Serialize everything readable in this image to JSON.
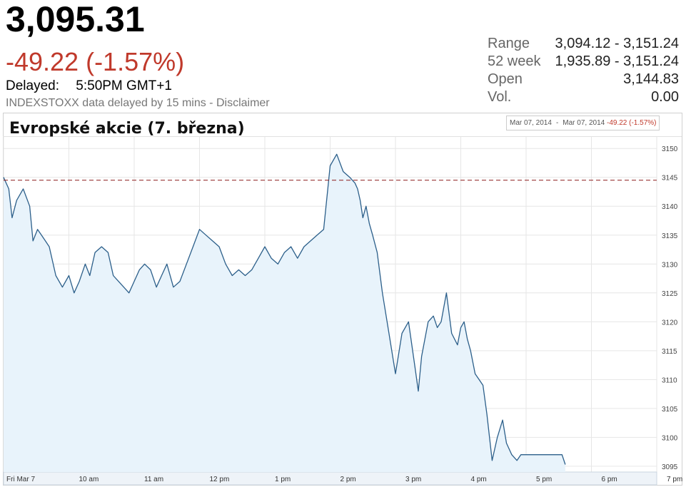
{
  "quote": {
    "price": "3,095.31",
    "change": "-49.22 (-1.57%)",
    "delayed_label": "Delayed:",
    "delayed_time": "5:50PM GMT+1",
    "disclaimer": "INDEXSTOXX data delayed by 15 mins - Disclaimer"
  },
  "stats": [
    {
      "key": "Range",
      "value": "3,094.12 - 3,151.24"
    },
    {
      "key": "52 week",
      "value": "1,935.89 - 3,151.24"
    },
    {
      "key": "Open",
      "value": "3,144.83"
    },
    {
      "key": "Vol.",
      "value": "0.00"
    }
  ],
  "range_badge": {
    "from": "Mar 07, 2014",
    "sep": "-",
    "to": "Mar 07, 2014",
    "change": "-49.22 (-1.57%)"
  },
  "colors": {
    "line": "#2c5f8a",
    "fill": "#e8f3fb",
    "negative": "#c0392b",
    "prev_close": "#8b1a1a"
  },
  "chart_data": {
    "type": "area",
    "title": "Evropské akcie (7. března)",
    "xlabel": "",
    "ylabel": "",
    "x_ticks": [
      "Fri Mar 7",
      "10 am",
      "11 am",
      "12 pm",
      "1 pm",
      "2 pm",
      "3 pm",
      "4 pm",
      "5 pm",
      "6 pm",
      "7 pm"
    ],
    "y_ticks": [
      3095,
      3100,
      3105,
      3110,
      3115,
      3120,
      3125,
      3130,
      3135,
      3140,
      3145,
      3150
    ],
    "ylim": [
      3094,
      3152
    ],
    "x_range_hours": [
      9,
      19
    ],
    "previous_close": 3144.5,
    "grid": true,
    "series": [
      {
        "x": [
          9.0,
          9.08,
          9.13,
          9.2,
          9.3,
          9.4,
          9.45,
          9.52,
          9.58,
          9.64,
          9.7,
          9.8,
          9.9,
          10.0,
          10.08,
          10.16,
          10.25,
          10.32,
          10.4,
          10.5,
          10.6,
          10.68,
          10.76,
          10.84,
          10.92,
          11.0,
          11.08,
          11.16,
          11.25,
          11.34,
          11.42,
          11.5,
          11.6,
          11.7,
          11.8,
          11.9,
          12.0,
          12.1,
          12.2,
          12.3,
          12.4,
          12.5,
          12.6,
          12.7,
          12.8,
          12.9,
          13.0,
          13.1,
          13.2,
          13.3,
          13.4,
          13.5,
          13.6,
          13.7,
          13.8,
          13.9,
          14.0,
          14.1,
          14.2,
          14.3,
          14.38,
          14.42,
          14.46,
          14.5,
          14.55,
          14.6,
          14.65,
          14.72,
          14.8,
          14.9,
          15.0,
          15.1,
          15.2,
          15.3,
          15.35,
          15.4,
          15.45,
          15.5,
          15.58,
          15.64,
          15.7,
          15.78,
          15.86,
          15.95,
          16.0,
          16.05,
          16.1,
          16.15,
          16.22,
          16.28,
          16.34,
          16.4,
          16.48,
          16.56,
          16.64,
          16.7,
          16.78,
          16.86,
          16.92,
          16.98,
          17.02,
          17.06,
          17.1,
          17.16,
          17.25,
          17.35,
          17.45,
          17.55,
          17.6
        ],
        "y": [
          3145,
          3143,
          3138,
          3141,
          3143,
          3140,
          3134,
          3136,
          3135,
          3134,
          3133,
          3128,
          3126,
          3128,
          3125,
          3127,
          3130,
          3128,
          3132,
          3133,
          3132,
          3128,
          3127,
          3126,
          3125,
          3127,
          3129,
          3130,
          3129,
          3126,
          3128,
          3130,
          3126,
          3127,
          3130,
          3133,
          3136,
          3135,
          3134,
          3133,
          3130,
          3128,
          3129,
          3128,
          3129,
          3131,
          3133,
          3131,
          3130,
          3132,
          3133,
          3131,
          3133,
          3134,
          3135,
          3136,
          3147,
          3149,
          3146,
          3145,
          3144,
          3143,
          3141,
          3138,
          3140,
          3137,
          3135,
          3132,
          3125,
          3118,
          3111,
          3118,
          3120,
          3112,
          3108,
          3114,
          3117,
          3120,
          3121,
          3119,
          3120,
          3125,
          3118,
          3116,
          3119,
          3120,
          3117,
          3115,
          3111,
          3110,
          3109,
          3104,
          3096,
          3100,
          3103,
          3099,
          3097,
          3096,
          3097,
          3097,
          3097,
          3097,
          3097,
          3097,
          3097,
          3097,
          3097,
          3097,
          3095.3
        ]
      }
    ]
  }
}
